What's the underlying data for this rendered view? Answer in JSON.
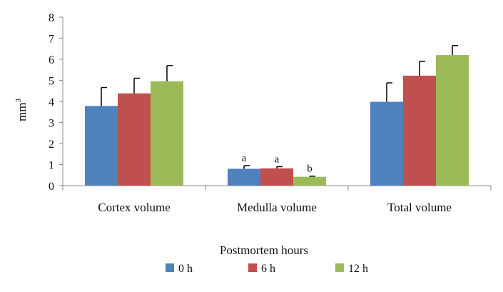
{
  "chart_data": {
    "type": "bar",
    "title": "",
    "xlabel": "Postmortem hours",
    "ylabel": "mm",
    "ylabel_superscript": "3",
    "ylim": [
      0,
      8
    ],
    "yticks": [
      0,
      1,
      2,
      3,
      4,
      5,
      6,
      7,
      8
    ],
    "grid": false,
    "legend_position": "bottom",
    "categories": [
      "Cortex volume",
      "Medulla volume",
      "Total volume"
    ],
    "series": [
      {
        "name": "0 h",
        "color": "#4f81bd",
        "values": [
          3.78,
          0.8,
          3.98
        ],
        "errors": [
          0.88,
          0.15,
          0.9
        ],
        "labels": [
          "",
          "a",
          ""
        ]
      },
      {
        "name": "6 h",
        "color": "#c0504d",
        "values": [
          4.38,
          0.82,
          5.22
        ],
        "errors": [
          0.72,
          0.08,
          0.68
        ],
        "labels": [
          "",
          "a",
          ""
        ]
      },
      {
        "name": "12 h",
        "color": "#9bbb59",
        "values": [
          4.95,
          0.42,
          6.2
        ],
        "errors": [
          0.75,
          0.03,
          0.45
        ],
        "labels": [
          "",
          "b",
          ""
        ]
      }
    ]
  }
}
